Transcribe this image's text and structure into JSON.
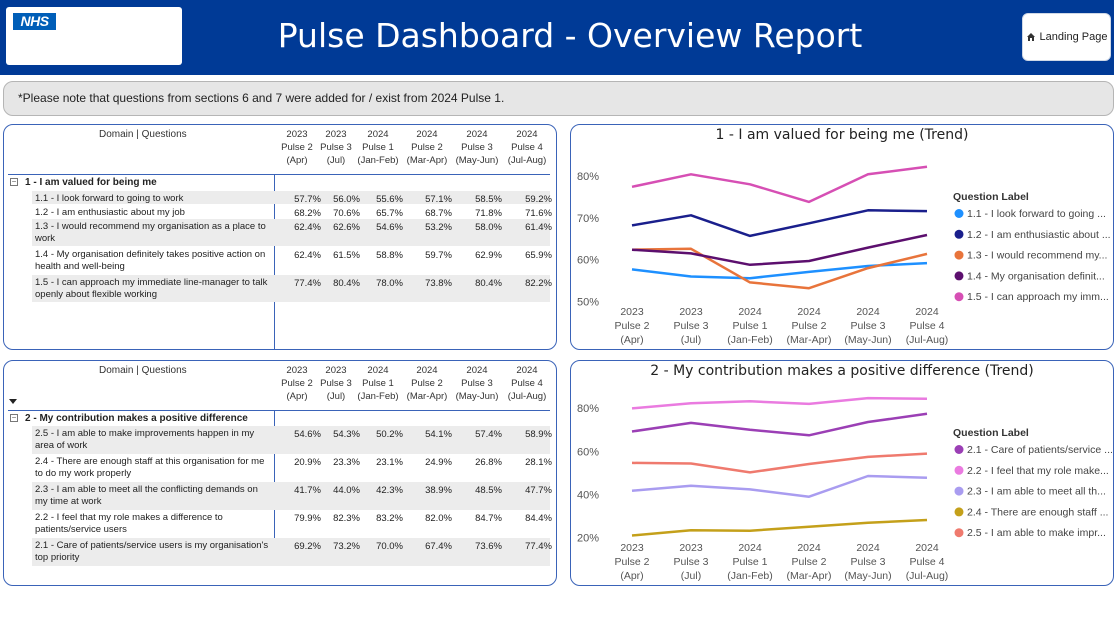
{
  "header": {
    "logo_text": "NHS",
    "title": "Pulse Dashboard - Overview Report",
    "landing_button": "Landing Page"
  },
  "note": "*Please note that questions from sections 6 and 7 were added for / exist from 2024 Pulse 1.",
  "columns_header": "Domain | Questions",
  "columns": [
    [
      "2023",
      "Pulse 2",
      "(Apr)"
    ],
    [
      "2023",
      "Pulse 3",
      "(Jul)"
    ],
    [
      "2024",
      "Pulse 1",
      "(Jan-Feb)"
    ],
    [
      "2024",
      "Pulse 2",
      "(Mar-Apr)"
    ],
    [
      "2024",
      "Pulse 3",
      "(May-Jun)"
    ],
    [
      "2024",
      "Pulse 4",
      "(Jul-Aug)"
    ]
  ],
  "table1": {
    "group": "1 - I am valued for being me",
    "group_toggle": "−",
    "rows": [
      {
        "q": "1.1 - I look forward to going to work",
        "v": [
          "57.7%",
          "56.0%",
          "55.6%",
          "57.1%",
          "58.5%",
          "59.2%"
        ]
      },
      {
        "q": "1.2 - I am enthusiastic about my job",
        "v": [
          "68.2%",
          "70.6%",
          "65.7%",
          "68.7%",
          "71.8%",
          "71.6%"
        ]
      },
      {
        "q": "1.3 - I would recommend my organisation as a place to work",
        "v": [
          "62.4%",
          "62.6%",
          "54.6%",
          "53.2%",
          "58.0%",
          "61.4%"
        ]
      },
      {
        "q": "1.4 - My organisation definitely takes positive action on health and well-being",
        "v": [
          "62.4%",
          "61.5%",
          "58.8%",
          "59.7%",
          "62.9%",
          "65.9%"
        ]
      },
      {
        "q": "1.5 - I can approach my immediate line-manager to talk openly about flexible working",
        "v": [
          "77.4%",
          "80.4%",
          "78.0%",
          "73.8%",
          "80.4%",
          "82.2%"
        ]
      }
    ]
  },
  "table2": {
    "group": "2 - My contribution makes a positive difference",
    "group_toggle": "−",
    "rows": [
      {
        "q": "2.5 - I am able to make improvements happen in my area of work",
        "v": [
          "54.6%",
          "54.3%",
          "50.2%",
          "54.1%",
          "57.4%",
          "58.9%"
        ]
      },
      {
        "q": "2.4 - There are enough staff at this organisation for me to do my work properly",
        "v": [
          "20.9%",
          "23.3%",
          "23.1%",
          "24.9%",
          "26.8%",
          "28.1%"
        ]
      },
      {
        "q": "2.3 - I am able to meet all the conflicting demands on my time at work",
        "v": [
          "41.7%",
          "44.0%",
          "42.3%",
          "38.9%",
          "48.5%",
          "47.7%"
        ]
      },
      {
        "q": "2.2 - I feel that my role makes a difference to patients/service users",
        "v": [
          "79.9%",
          "82.3%",
          "83.2%",
          "82.0%",
          "84.7%",
          "84.4%"
        ]
      },
      {
        "q": "2.1 - Care of patients/service users is my organisation's top priority",
        "v": [
          "69.2%",
          "73.2%",
          "70.0%",
          "67.4%",
          "73.6%",
          "77.4%"
        ]
      }
    ]
  },
  "chart_data": [
    {
      "type": "line",
      "title": "1 - I am valued for being me (Trend)",
      "x": [
        [
          "2023",
          "Pulse 2",
          "(Apr)"
        ],
        [
          "2023",
          "Pulse 3",
          "(Jul)"
        ],
        [
          "2024",
          "Pulse 1",
          "(Jan-Feb)"
        ],
        [
          "2024",
          "Pulse 2",
          "(Mar-Apr)"
        ],
        [
          "2024",
          "Pulse 3",
          "(May-Jun)"
        ],
        [
          "2024",
          "Pulse 4",
          "(Jul-Aug)"
        ]
      ],
      "ylim": [
        48,
        85
      ],
      "yticks": [
        50,
        60,
        70,
        80
      ],
      "ytick_labels": [
        "50%",
        "60%",
        "70%",
        "80%"
      ],
      "legend_title": "Question Label",
      "legend_position": "right",
      "series": [
        {
          "name": "1.1 - I look forward to going ...",
          "color": "#1e90ff",
          "values": [
            57.7,
            56.0,
            55.6,
            57.1,
            58.5,
            59.2
          ]
        },
        {
          "name": "1.2 - I am enthusiastic about ...",
          "color": "#1a1f8c",
          "values": [
            68.2,
            70.6,
            65.7,
            68.7,
            71.8,
            71.6
          ]
        },
        {
          "name": "1.3 - I would recommend my...",
          "color": "#e8743b",
          "values": [
            62.4,
            62.6,
            54.6,
            53.2,
            58.0,
            61.4
          ]
        },
        {
          "name": "1.4 - My organisation definit...",
          "color": "#5c0f6e",
          "values": [
            62.4,
            61.5,
            58.8,
            59.7,
            62.9,
            65.9
          ]
        },
        {
          "name": "1.5 - I can approach my imm...",
          "color": "#d64fb4",
          "values": [
            77.4,
            80.4,
            78.0,
            73.8,
            80.4,
            82.2
          ]
        }
      ]
    },
    {
      "type": "line",
      "title": "2 - My contribution makes a positive difference (Trend)",
      "x": [
        [
          "2023",
          "Pulse 2",
          "(Apr)"
        ],
        [
          "2023",
          "Pulse 3",
          "(Jul)"
        ],
        [
          "2024",
          "Pulse 1",
          "(Jan-Feb)"
        ],
        [
          "2024",
          "Pulse 2",
          "(Mar-Apr)"
        ],
        [
          "2024",
          "Pulse 3",
          "(May-Jun)"
        ],
        [
          "2024",
          "Pulse 4",
          "(Jul-Aug)"
        ]
      ],
      "ylim": [
        16,
        88
      ],
      "yticks": [
        20,
        40,
        60,
        80
      ],
      "ytick_labels": [
        "20%",
        "40%",
        "60%",
        "80%"
      ],
      "legend_title": "Question Label",
      "legend_position": "right",
      "series": [
        {
          "name": "2.1 - Care of patients/service ...",
          "color": "#9b3fb5",
          "values": [
            69.2,
            73.2,
            70.0,
            67.4,
            73.6,
            77.4
          ]
        },
        {
          "name": "2.2 - I feel that my role make...",
          "color": "#ea7be0",
          "values": [
            79.9,
            82.3,
            83.2,
            82.0,
            84.7,
            84.4
          ]
        },
        {
          "name": "2.3 - I am able to meet all th...",
          "color": "#a99cf0",
          "values": [
            41.7,
            44.0,
            42.3,
            38.9,
            48.5,
            47.7
          ]
        },
        {
          "name": "2.4 - There are enough staff ...",
          "color": "#c4a01a",
          "values": [
            20.9,
            23.3,
            23.1,
            24.9,
            26.8,
            28.1
          ]
        },
        {
          "name": "2.5 - I am able to make impr...",
          "color": "#ef7a6e",
          "values": [
            54.6,
            54.3,
            50.2,
            54.1,
            57.4,
            58.9
          ]
        }
      ]
    }
  ]
}
